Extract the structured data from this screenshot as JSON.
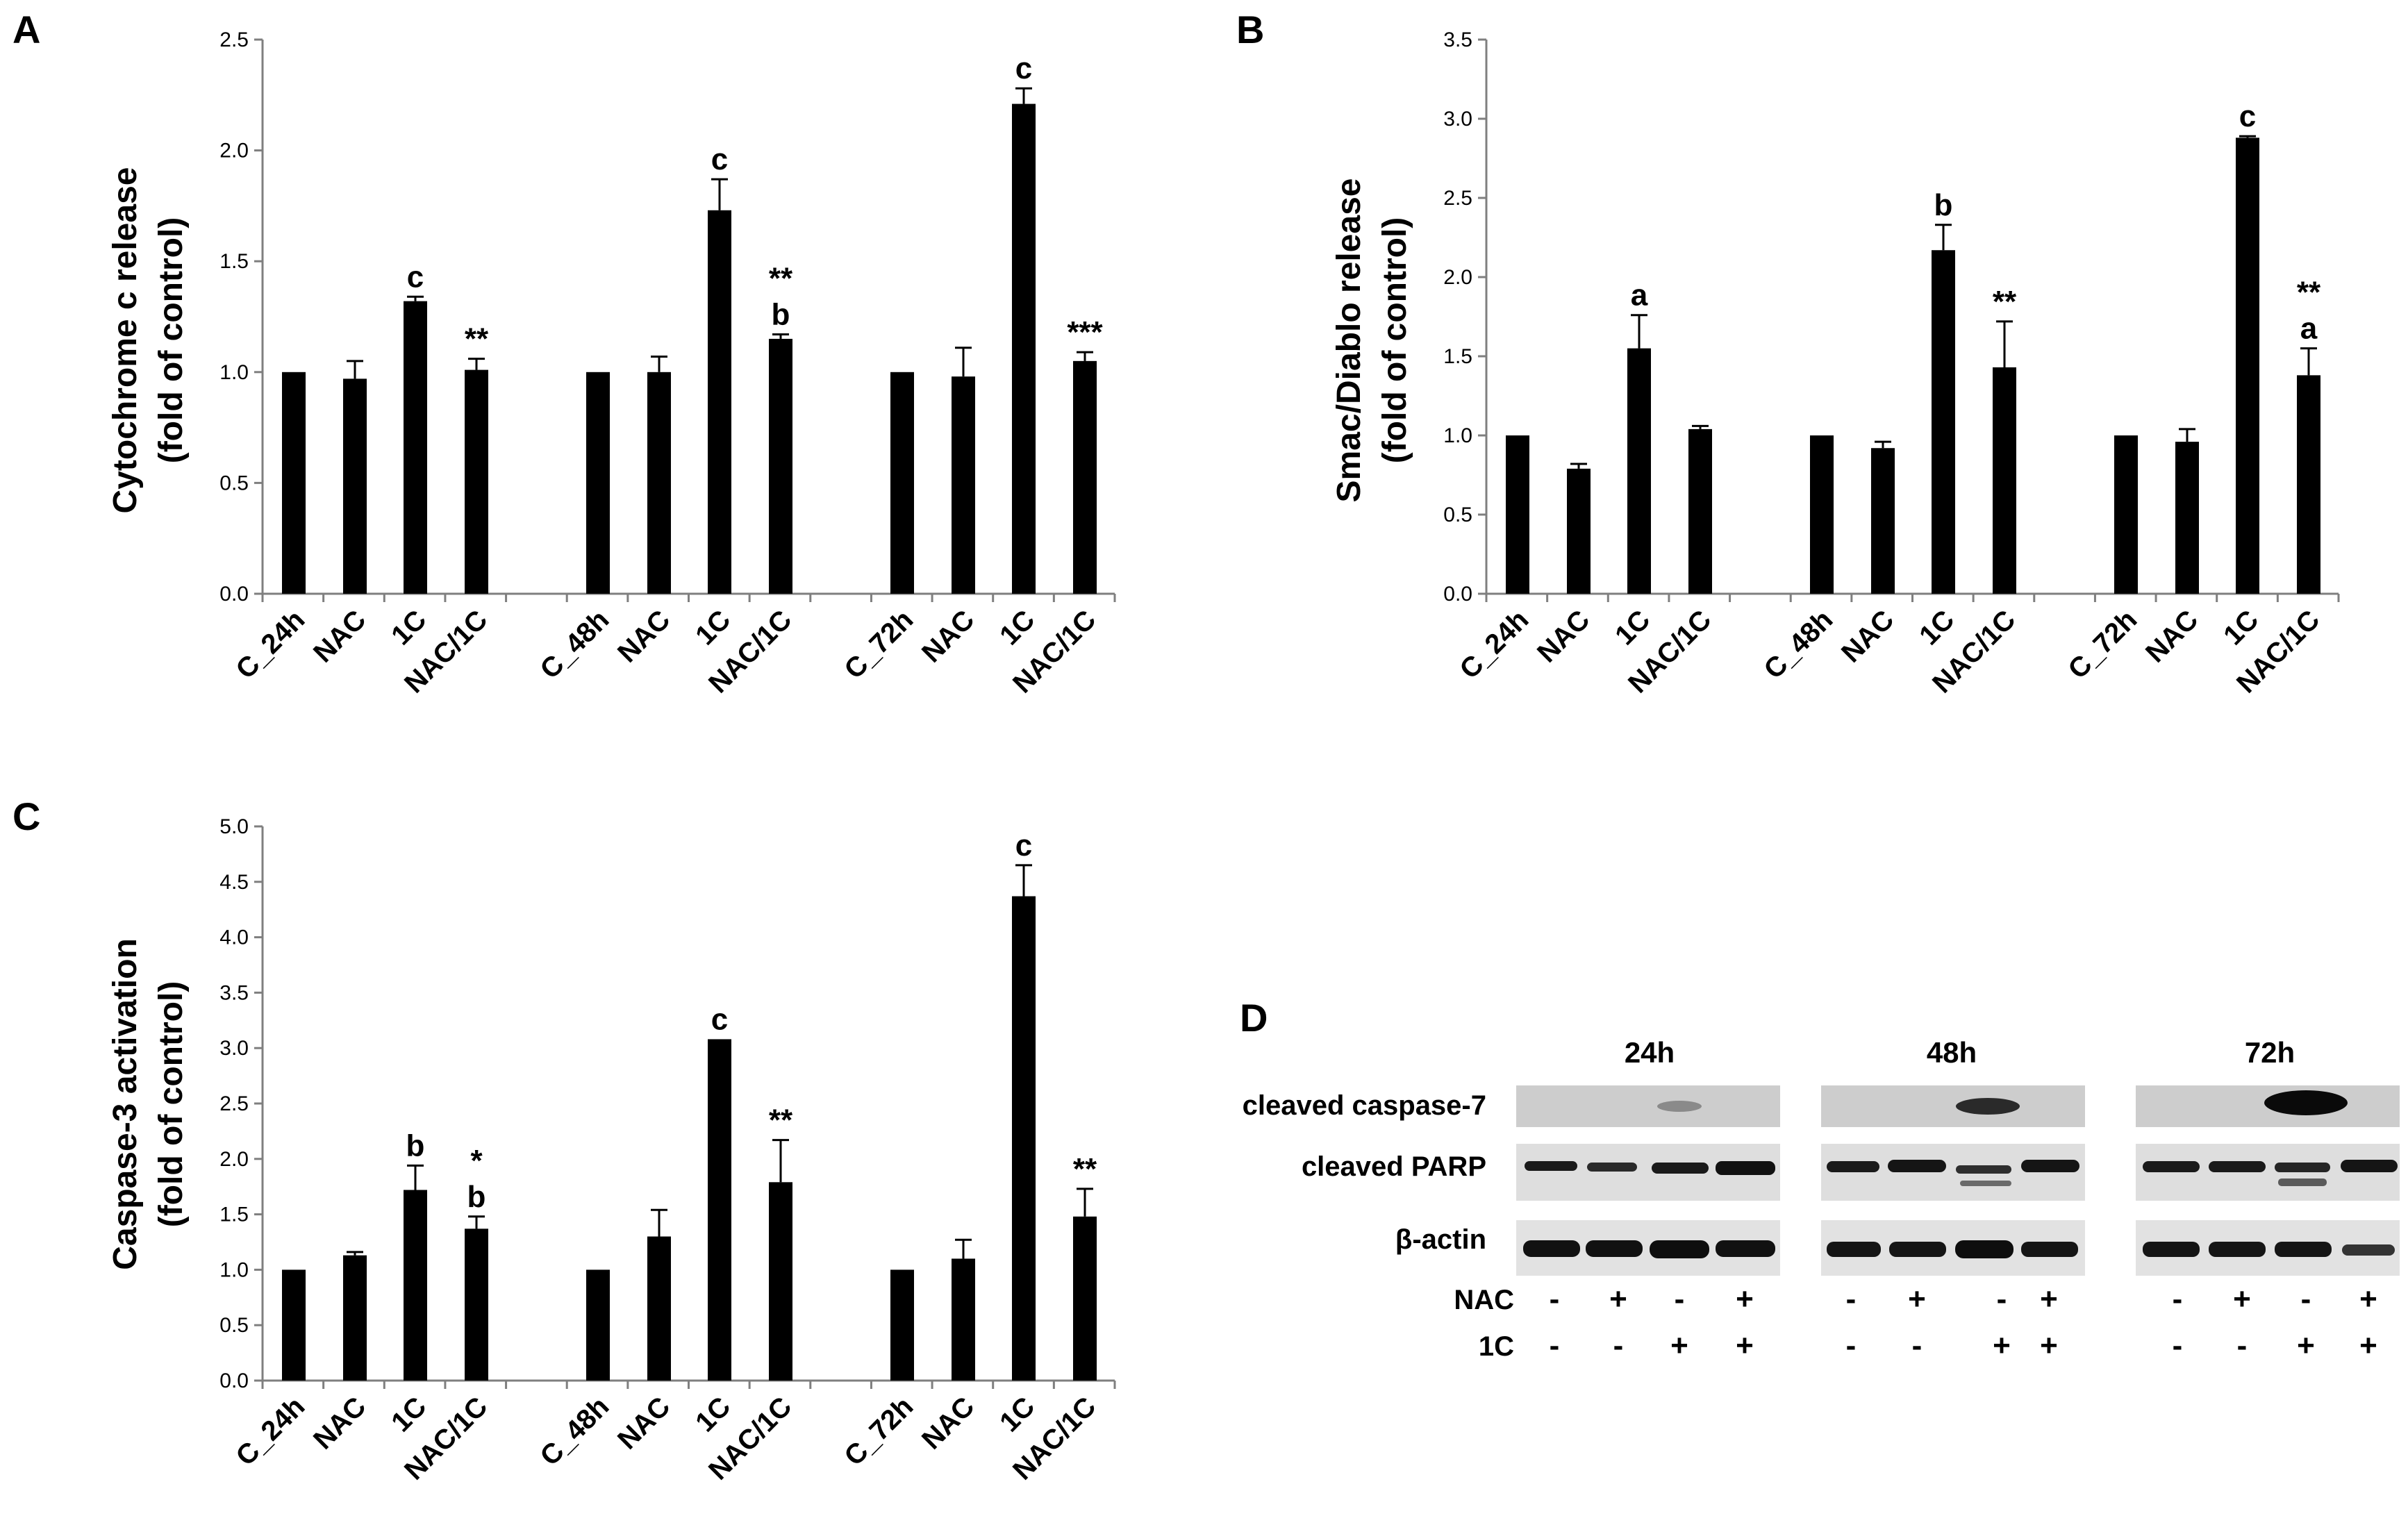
{
  "chart_data": [
    {
      "type": "bar",
      "panel": "A",
      "ylabel_line1": "Cytochrome c release",
      "ylabel_line2": "(fold of control)",
      "ylim": [
        0,
        2.5
      ],
      "yticks": [
        "0.0",
        "0.5",
        "1.0",
        "1.5",
        "2.0",
        "2.5"
      ],
      "categories": [
        "C_24h",
        "NAC",
        "1C",
        "NAC/1C",
        "C_48h",
        "NAC",
        "1C",
        "NAC/1C",
        "C_72h",
        "NAC",
        "1C",
        "NAC/1C"
      ],
      "values": [
        1.0,
        0.97,
        1.32,
        1.01,
        1.0,
        1.0,
        1.73,
        1.15,
        1.0,
        0.98,
        2.21,
        1.05
      ],
      "errors": [
        0,
        0.08,
        0.02,
        0.05,
        0,
        0.07,
        0.14,
        0.02,
        0,
        0.13,
        0.07,
        0.04
      ],
      "annotations": [
        "",
        "",
        "c",
        "**",
        "",
        "",
        "c",
        "b|**",
        "",
        "",
        "c",
        "***"
      ]
    },
    {
      "type": "bar",
      "panel": "B",
      "ylabel_line1": "Smac/Diablo release",
      "ylabel_line2": "(fold of control)",
      "ylim": [
        0,
        3.5
      ],
      "yticks": [
        "0.0",
        "0.5",
        "1.0",
        "1.5",
        "2.0",
        "2.5",
        "3.0",
        "3.5"
      ],
      "categories": [
        "C_24h",
        "NAC",
        "1C",
        "NAC/1C",
        "C_48h",
        "NAC",
        "1C",
        "NAC/1C",
        "C_72h",
        "NAC",
        "1C",
        "NAC/1C"
      ],
      "values": [
        1.0,
        0.79,
        1.55,
        1.04,
        1.0,
        0.92,
        2.17,
        1.43,
        1.0,
        0.96,
        2.88,
        1.38
      ],
      "errors": [
        0,
        0.03,
        0.21,
        0.02,
        0,
        0.04,
        0.16,
        0.29,
        0,
        0.08,
        0.01,
        0.17
      ],
      "annotations": [
        "",
        "",
        "a",
        "",
        "",
        "",
        "b",
        "**",
        "",
        "",
        "c",
        "a|**"
      ]
    },
    {
      "type": "bar",
      "panel": "C",
      "ylabel_line1": "Caspase-3 activation",
      "ylabel_line2": "(fold of control)",
      "ylim": [
        0,
        5.0
      ],
      "yticks": [
        "0.0",
        "0.5",
        "1.0",
        "1.5",
        "2.0",
        "2.5",
        "3.0",
        "3.5",
        "4.0",
        "4.5",
        "5.0"
      ],
      "categories": [
        "C_24h",
        "NAC",
        "1C",
        "NAC/1C",
        "C_48h",
        "NAC",
        "1C",
        "NAC/1C",
        "C_72h",
        "NAC",
        "1C",
        "NAC/1C"
      ],
      "values": [
        1.0,
        1.13,
        1.72,
        1.37,
        1.0,
        1.3,
        3.08,
        1.79,
        1.0,
        1.1,
        4.37,
        1.48
      ],
      "errors": [
        0,
        0.03,
        0.22,
        0.11,
        0,
        0.24,
        0,
        0.38,
        0,
        0.17,
        0.28,
        0.25
      ],
      "annotations": [
        "",
        "",
        "b",
        "b|*",
        "",
        "",
        "c",
        "**",
        "",
        "",
        "c",
        "**"
      ]
    }
  ],
  "blot": {
    "panel": "D",
    "timepoints": [
      "24h",
      "48h",
      "72h"
    ],
    "rows": [
      "cleaved caspase-7",
      "cleaved PARP",
      "β-actin"
    ],
    "treatments": [
      {
        "label": "NAC",
        "signs": [
          "-",
          "+",
          "-",
          "+"
        ]
      },
      {
        "label": "1C",
        "signs": [
          "-",
          "-",
          "+",
          "+"
        ]
      }
    ]
  }
}
